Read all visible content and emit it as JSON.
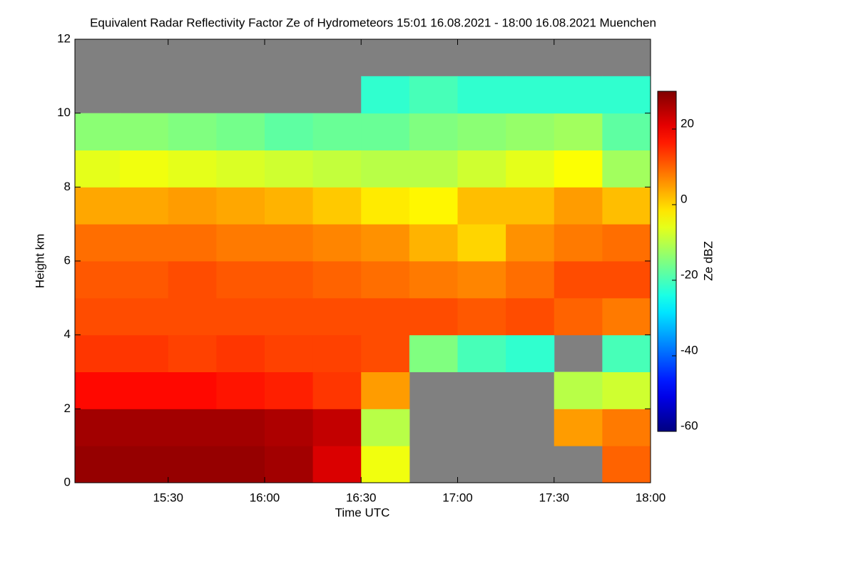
{
  "chart_data": {
    "type": "heatmap",
    "title": "Equivalent Radar Reflectivity Factor Ze of Hydrometeors   15:01 16.08.2021 - 18:00 16.08.2021 Muenchen",
    "x_label": "Time UTC",
    "y_label": "Height km",
    "colorbar_label": "Ze dBZ",
    "colormap": "jet",
    "missing_color": "#808080",
    "xlim": [
      15.0167,
      18.0
    ],
    "xticks": [
      {
        "value": 15.5,
        "label": "15:30"
      },
      {
        "value": 16.0,
        "label": "16:00"
      },
      {
        "value": 16.5,
        "label": "16:30"
      },
      {
        "value": 17.0,
        "label": "17:00"
      },
      {
        "value": 17.5,
        "label": "17:30"
      },
      {
        "value": 18.0,
        "label": "18:00"
      }
    ],
    "ylim": [
      0,
      12
    ],
    "yticks": [
      0,
      2,
      4,
      6,
      8,
      10,
      12
    ],
    "clim": [
      -60,
      30
    ],
    "cticks": [
      20,
      0,
      -20,
      -40,
      -60
    ],
    "x_bins": [
      15.0167,
      15.25,
      15.5,
      15.75,
      16.0,
      16.25,
      16.5,
      16.75,
      17.0,
      17.25,
      17.5,
      17.75,
      18.0
    ],
    "y_bins": [
      0,
      1,
      2,
      3,
      4,
      5,
      6,
      7,
      8,
      9,
      10,
      11,
      12
    ],
    "values": [
      [
        28,
        28,
        28,
        28,
        27,
        22,
        -5,
        null,
        null,
        null,
        null,
        10
      ],
      [
        27,
        27,
        27,
        27,
        26,
        24,
        -10,
        null,
        null,
        null,
        5,
        8
      ],
      [
        18,
        18,
        18,
        17,
        16,
        14,
        5,
        null,
        null,
        null,
        -10,
        -8
      ],
      [
        14,
        14,
        13,
        14,
        13,
        13,
        12,
        -15,
        -20,
        -22,
        null,
        -20
      ],
      [
        12,
        12,
        12,
        12,
        12,
        12,
        12,
        12,
        11,
        12,
        10,
        8
      ],
      [
        11,
        11,
        12,
        11,
        11,
        10,
        9,
        8,
        7,
        9,
        12,
        12
      ],
      [
        9,
        9,
        9,
        8,
        8,
        7,
        6,
        3,
        0,
        6,
        8,
        9
      ],
      [
        4,
        4,
        5,
        4,
        3,
        1,
        -2,
        -3,
        2,
        2,
        5,
        2
      ],
      [
        -6,
        -5,
        -6,
        -7,
        -8,
        -9,
        -10,
        -10,
        -8,
        -6,
        -4,
        -12
      ],
      [
        -14,
        -14,
        -15,
        -16,
        -18,
        -17,
        -17,
        -15,
        -14,
        -13,
        -12,
        -18
      ],
      [
        null,
        null,
        null,
        null,
        null,
        null,
        -22,
        -20,
        -22,
        -22,
        -22,
        -22
      ],
      [
        null,
        null,
        null,
        null,
        null,
        null,
        null,
        null,
        null,
        null,
        null,
        null
      ]
    ]
  }
}
